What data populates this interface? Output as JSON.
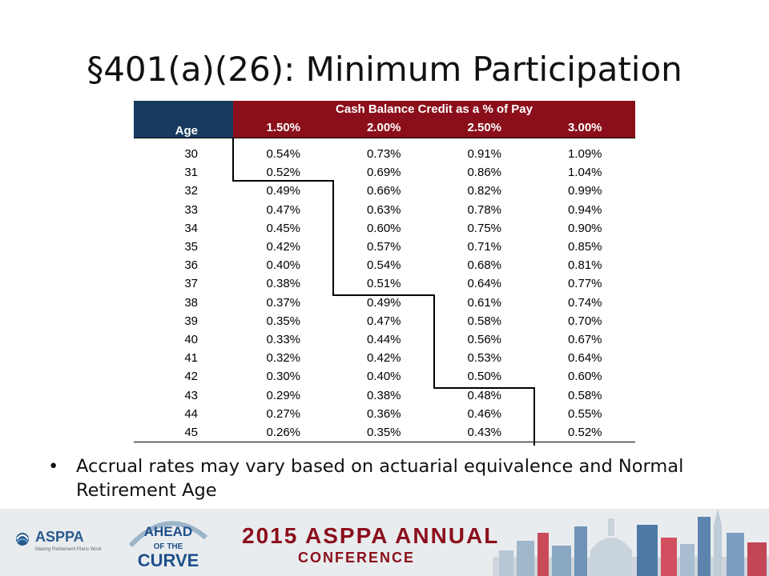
{
  "slide": {
    "title": "§401(a)(26): Minimum Participation",
    "bullet": "Accrual rates may vary based on actuarial equivalence and Normal Retirement Age"
  },
  "table": {
    "band_title": "Cash Balance Credit as a % of Pay",
    "age_header": "Age",
    "rate_headers": [
      "1.50%",
      "2.00%",
      "2.50%",
      "3.00%"
    ],
    "rows": [
      {
        "age": "30",
        "vals": [
          "0.54%",
          "0.73%",
          "0.91%",
          "1.09%"
        ]
      },
      {
        "age": "31",
        "vals": [
          "0.52%",
          "0.69%",
          "0.86%",
          "1.04%"
        ]
      },
      {
        "age": "32",
        "vals": [
          "0.49%",
          "0.66%",
          "0.82%",
          "0.99%"
        ]
      },
      {
        "age": "33",
        "vals": [
          "0.47%",
          "0.63%",
          "0.78%",
          "0.94%"
        ]
      },
      {
        "age": "34",
        "vals": [
          "0.45%",
          "0.60%",
          "0.75%",
          "0.90%"
        ]
      },
      {
        "age": "35",
        "vals": [
          "0.42%",
          "0.57%",
          "0.71%",
          "0.85%"
        ]
      },
      {
        "age": "36",
        "vals": [
          "0.40%",
          "0.54%",
          "0.68%",
          "0.81%"
        ]
      },
      {
        "age": "37",
        "vals": [
          "0.38%",
          "0.51%",
          "0.64%",
          "0.77%"
        ]
      },
      {
        "age": "38",
        "vals": [
          "0.37%",
          "0.49%",
          "0.61%",
          "0.74%"
        ]
      },
      {
        "age": "39",
        "vals": [
          "0.35%",
          "0.47%",
          "0.58%",
          "0.70%"
        ]
      },
      {
        "age": "40",
        "vals": [
          "0.33%",
          "0.44%",
          "0.56%",
          "0.67%"
        ]
      },
      {
        "age": "41",
        "vals": [
          "0.32%",
          "0.42%",
          "0.53%",
          "0.64%"
        ]
      },
      {
        "age": "42",
        "vals": [
          "0.30%",
          "0.40%",
          "0.50%",
          "0.60%"
        ]
      },
      {
        "age": "43",
        "vals": [
          "0.29%",
          "0.38%",
          "0.48%",
          "0.58%"
        ]
      },
      {
        "age": "44",
        "vals": [
          "0.27%",
          "0.36%",
          "0.46%",
          "0.55%"
        ]
      },
      {
        "age": "45",
        "vals": [
          "0.26%",
          "0.35%",
          "0.43%",
          "0.52%"
        ]
      }
    ]
  },
  "footer": {
    "org_logo_text": "ASPPA",
    "org_tagline": "Making Retirement Plans Work",
    "curve_logo_lines": [
      "AHEAD",
      "OF THE",
      "CURVE"
    ],
    "conference_line1": "2015 ASPPA ANNUAL",
    "conference_line2": "CONFERENCE"
  },
  "colors": {
    "header_navy": "#173a5e",
    "header_red": "#8b0f1b",
    "footer_bg": "#e9ecef"
  }
}
